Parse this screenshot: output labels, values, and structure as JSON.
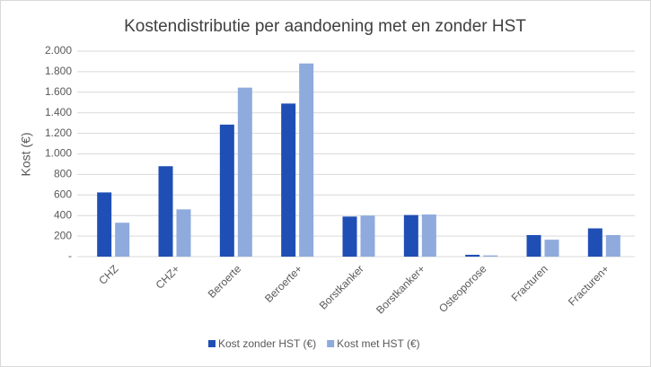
{
  "chart_data": {
    "type": "bar",
    "title": "Kostendistributie per aandoening met en zonder HST",
    "y_label": "Kost (€)",
    "categories": [
      "CHZ",
      "CHZ+",
      "Beroerte",
      "Beroerte+",
      "Borstkanker",
      "Borstkanker+",
      "Osteoporose",
      "Fracturen",
      "Fracturen+"
    ],
    "series": [
      {
        "name": "Kost zonder HST (€)",
        "color": "#1f4fb4",
        "values": [
          625,
          880,
          1285,
          1490,
          390,
          405,
          18,
          210,
          275
        ]
      },
      {
        "name": "Kost met HST (€)",
        "color": "#8faadc",
        "values": [
          330,
          460,
          1645,
          1880,
          400,
          410,
          12,
          165,
          210
        ]
      }
    ],
    "ylim": [
      0,
      2000
    ],
    "yticks": [
      {
        "value": 0,
        "label": "-"
      },
      200,
      400,
      600,
      800,
      {
        "value": 1000,
        "label": "1.000"
      },
      {
        "value": 1200,
        "label": "1.200"
      },
      {
        "value": 1400,
        "label": "1.400"
      },
      {
        "value": 1600,
        "label": "1.600"
      },
      {
        "value": 1800,
        "label": "1.800"
      },
      {
        "value": 2000,
        "label": "2.000"
      }
    ],
    "grid": true,
    "legend": "bottom"
  }
}
